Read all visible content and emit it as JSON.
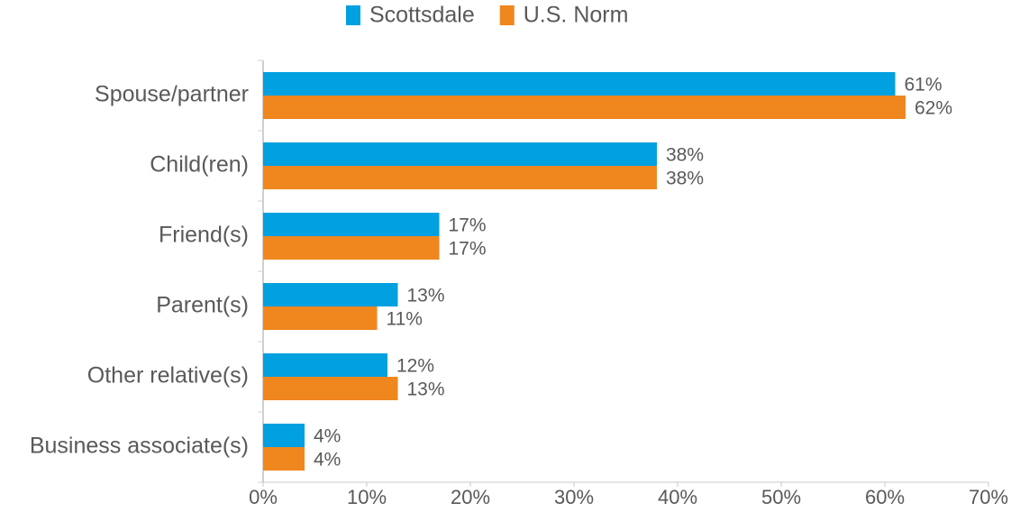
{
  "chart_data": {
    "type": "bar",
    "orientation": "horizontal",
    "categories": [
      "Spouse/partner",
      "Child(ren)",
      "Friend(s)",
      "Parent(s)",
      "Other relative(s)",
      "Business associate(s)"
    ],
    "series": [
      {
        "name": "Scottsdale",
        "color": "#00a0e1",
        "values": [
          61,
          38,
          17,
          13,
          12,
          4
        ],
        "value_labels": [
          "61%",
          "38%",
          "17%",
          "13%",
          "12%",
          "4%"
        ]
      },
      {
        "name": "U.S. Norm",
        "color": "#f0861e",
        "values": [
          62,
          38,
          17,
          11,
          13,
          4
        ],
        "value_labels": [
          "62%",
          "38%",
          "17%",
          "11%",
          "13%",
          "4%"
        ]
      }
    ],
    "xlim": [
      0,
      70
    ],
    "xticks": [
      {
        "value": 0,
        "label": "0%"
      },
      {
        "value": 10,
        "label": "10%"
      },
      {
        "value": 20,
        "label": "20%"
      },
      {
        "value": 30,
        "label": "30%"
      },
      {
        "value": 40,
        "label": "40%"
      },
      {
        "value": 50,
        "label": "50%"
      },
      {
        "value": 60,
        "label": "60%"
      },
      {
        "value": 70,
        "label": "70%"
      }
    ],
    "legend": "top"
  }
}
